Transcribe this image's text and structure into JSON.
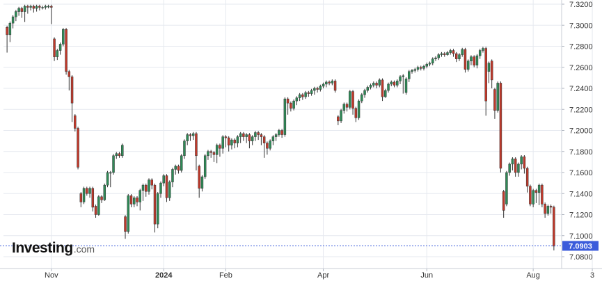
{
  "brand": {
    "name": "Investing",
    "suffix": ".com"
  },
  "colors": {
    "up": "#2e8b57",
    "down": "#c0392b",
    "last_price_bg": "#3b5bdb",
    "grid": "#e6e9ef",
    "axis_text": "#333333"
  },
  "chart_data": {
    "type": "candlestick",
    "title": "",
    "xlabel": "",
    "ylabel": "",
    "ylim": [
      7.07,
      7.325
    ],
    "y_ticks": [
      "7.3200",
      "7.3000",
      "7.2800",
      "7.2600",
      "7.2400",
      "7.2200",
      "7.2000",
      "7.1800",
      "7.1600",
      "7.1400",
      "7.1200",
      "7.1000",
      "7.0800"
    ],
    "x_ticks": [
      {
        "label": "Nov",
        "index": 15
      },
      {
        "label": "2024",
        "index": 53
      },
      {
        "label": "Feb",
        "index": 74
      },
      {
        "label": "Apr",
        "index": 107
      },
      {
        "label": "Jun",
        "index": 142
      },
      {
        "label": "Aug",
        "index": 178
      },
      {
        "label": "3",
        "index": 198
      }
    ],
    "last_price": "7.0903",
    "grid": true,
    "candles": [
      [
        7.298,
        7.291,
        7.274
      ],
      [
        7.291,
        7.302,
        7.284
      ],
      [
        7.302,
        7.308,
        7.297
      ],
      [
        7.308,
        7.313,
        7.304
      ],
      [
        7.313,
        7.316,
        7.309
      ],
      [
        7.316,
        7.313,
        7.307
      ],
      [
        7.313,
        7.318,
        7.303
      ],
      [
        7.318,
        7.317,
        7.311
      ],
      [
        7.317,
        7.318,
        7.314
      ],
      [
        7.318,
        7.316,
        7.312
      ],
      [
        7.316,
        7.318,
        7.313
      ],
      [
        7.318,
        7.317,
        7.314
      ],
      [
        7.317,
        7.317,
        7.315
      ],
      [
        7.317,
        7.318,
        7.315
      ],
      [
        7.318,
        7.318,
        7.316
      ],
      [
        7.318,
        7.317,
        7.301
      ],
      [
        7.287,
        7.27,
        7.266
      ],
      [
        7.27,
        7.276,
        7.267
      ],
      [
        7.276,
        7.282,
        7.272
      ],
      [
        7.282,
        7.296,
        7.28
      ],
      [
        7.296,
        7.256,
        7.253
      ],
      [
        7.256,
        7.251,
        7.238
      ],
      [
        7.251,
        7.226,
        7.208
      ],
      [
        7.214,
        7.202,
        7.199
      ],
      [
        7.202,
        7.165,
        7.163
      ],
      [
        7.14,
        7.132,
        7.127
      ],
      [
        7.132,
        7.145,
        7.13
      ],
      [
        7.145,
        7.14,
        7.138
      ],
      [
        7.14,
        7.145,
        7.136
      ],
      [
        7.145,
        7.127,
        7.123
      ],
      [
        7.128,
        7.12,
        7.117
      ],
      [
        7.12,
        7.137,
        7.119
      ],
      [
        7.137,
        7.134,
        7.131
      ],
      [
        7.134,
        7.148,
        7.133
      ],
      [
        7.148,
        7.16,
        7.146
      ],
      [
        7.16,
        7.16,
        7.146
      ],
      [
        7.16,
        7.176,
        7.158
      ],
      [
        7.176,
        7.178,
        7.173
      ],
      [
        7.178,
        7.176,
        7.174
      ],
      [
        7.176,
        7.186,
        7.174
      ],
      [
        7.118,
        7.104,
        7.097
      ],
      [
        7.104,
        7.138,
        7.102
      ],
      [
        7.138,
        7.13,
        7.127
      ],
      [
        7.13,
        7.136,
        7.127
      ],
      [
        7.136,
        7.132,
        7.128
      ],
      [
        7.132,
        7.143,
        7.124
      ],
      [
        7.143,
        7.148,
        7.133
      ],
      [
        7.148,
        7.142,
        7.137
      ],
      [
        7.142,
        7.153,
        7.139
      ],
      [
        7.153,
        7.148,
        7.144
      ],
      [
        7.148,
        7.111,
        7.103
      ],
      [
        7.111,
        7.14,
        7.107
      ],
      [
        7.14,
        7.15,
        7.136
      ],
      [
        7.15,
        7.157,
        7.147
      ],
      [
        7.157,
        7.136,
        7.132
      ],
      [
        7.136,
        7.151,
        7.133
      ],
      [
        7.151,
        7.163,
        7.146
      ],
      [
        7.163,
        7.166,
        7.158
      ],
      [
        7.166,
        7.162,
        7.159
      ],
      [
        7.162,
        7.176,
        7.16
      ],
      [
        7.176,
        7.19,
        7.173
      ],
      [
        7.19,
        7.196,
        7.186
      ],
      [
        7.196,
        7.195,
        7.19
      ],
      [
        7.195,
        7.197,
        7.191
      ],
      [
        7.197,
        7.176,
        7.162
      ],
      [
        7.166,
        7.145,
        7.136
      ],
      [
        7.145,
        7.156,
        7.142
      ],
      [
        7.156,
        7.176,
        7.154
      ],
      [
        7.176,
        7.18,
        7.172
      ],
      [
        7.18,
        7.179,
        7.174
      ],
      [
        7.179,
        7.177,
        7.17
      ],
      [
        7.177,
        7.186,
        7.169
      ],
      [
        7.186,
        7.183,
        7.175
      ],
      [
        7.183,
        7.194,
        7.178
      ],
      [
        7.194,
        7.193,
        7.184
      ],
      [
        7.193,
        7.186,
        7.18
      ],
      [
        7.186,
        7.191,
        7.182
      ],
      [
        7.191,
        7.188,
        7.183
      ],
      [
        7.188,
        7.194,
        7.184
      ],
      [
        7.194,
        7.197,
        7.188
      ],
      [
        7.197,
        7.194,
        7.19
      ],
      [
        7.194,
        7.196,
        7.188
      ],
      [
        7.196,
        7.19,
        7.183
      ],
      [
        7.19,
        7.194,
        7.186
      ],
      [
        7.194,
        7.198,
        7.19
      ],
      [
        7.198,
        7.196,
        7.191
      ],
      [
        7.196,
        7.194,
        7.186
      ],
      [
        7.194,
        7.188,
        7.174
      ],
      [
        7.188,
        7.183,
        7.177
      ],
      [
        7.183,
        7.19,
        7.181
      ],
      [
        7.19,
        7.194,
        7.186
      ],
      [
        7.194,
        7.196,
        7.19
      ],
      [
        7.196,
        7.2,
        7.194
      ],
      [
        7.2,
        7.196,
        7.193
      ],
      [
        7.196,
        7.23,
        7.194
      ],
      [
        7.23,
        7.226,
        7.215
      ],
      [
        7.226,
        7.221,
        7.218
      ],
      [
        7.221,
        7.228,
        7.219
      ],
      [
        7.228,
        7.231,
        7.224
      ],
      [
        7.231,
        7.234,
        7.228
      ],
      [
        7.234,
        7.232,
        7.229
      ],
      [
        7.232,
        7.236,
        7.23
      ],
      [
        7.236,
        7.235,
        7.232
      ],
      [
        7.235,
        7.238,
        7.233
      ],
      [
        7.238,
        7.24,
        7.234
      ],
      [
        7.24,
        7.239,
        7.236
      ],
      [
        7.239,
        7.242,
        7.237
      ],
      [
        7.242,
        7.244,
        7.24
      ],
      [
        7.244,
        7.246,
        7.241
      ],
      [
        7.246,
        7.245,
        7.243
      ],
      [
        7.245,
        7.247,
        7.243
      ],
      [
        7.247,
        7.238,
        7.236
      ],
      [
        7.213,
        7.209,
        7.205
      ],
      [
        7.209,
        7.219,
        7.207
      ],
      [
        7.219,
        7.225,
        7.216
      ],
      [
        7.225,
        7.222,
        7.218
      ],
      [
        7.222,
        7.237,
        7.22
      ],
      [
        7.237,
        7.221,
        7.215
      ],
      [
        7.221,
        7.212,
        7.208
      ],
      [
        7.212,
        7.228,
        7.21
      ],
      [
        7.228,
        7.234,
        7.226
      ],
      [
        7.234,
        7.238,
        7.231
      ],
      [
        7.238,
        7.241,
        7.236
      ],
      [
        7.241,
        7.243,
        7.239
      ],
      [
        7.243,
        7.245,
        7.241
      ],
      [
        7.245,
        7.243,
        7.24
      ],
      [
        7.243,
        7.248,
        7.241
      ],
      [
        7.248,
        7.232,
        7.228
      ],
      [
        7.232,
        7.238,
        7.231
      ],
      [
        7.238,
        7.244,
        7.236
      ],
      [
        7.244,
        7.246,
        7.242
      ],
      [
        7.246,
        7.243,
        7.241
      ],
      [
        7.243,
        7.247,
        7.241
      ],
      [
        7.247,
        7.251,
        7.244
      ],
      [
        7.251,
        7.252,
        7.235
      ],
      [
        7.236,
        7.249,
        7.234
      ],
      [
        7.249,
        7.256,
        7.246
      ],
      [
        7.256,
        7.257,
        7.254
      ],
      [
        7.257,
        7.258,
        7.255
      ],
      [
        7.258,
        7.26,
        7.256
      ],
      [
        7.26,
        7.259,
        7.257
      ],
      [
        7.259,
        7.261,
        7.257
      ],
      [
        7.261,
        7.263,
        7.259
      ],
      [
        7.263,
        7.264,
        7.261
      ],
      [
        7.264,
        7.268,
        7.262
      ],
      [
        7.268,
        7.269,
        7.266
      ],
      [
        7.269,
        7.272,
        7.267
      ],
      [
        7.272,
        7.273,
        7.27
      ],
      [
        7.273,
        7.272,
        7.27
      ],
      [
        7.272,
        7.274,
        7.271
      ],
      [
        7.274,
        7.276,
        7.272
      ],
      [
        7.276,
        7.273,
        7.27
      ],
      [
        7.273,
        7.268,
        7.265
      ],
      [
        7.268,
        7.272,
        7.266
      ],
      [
        7.272,
        7.277,
        7.27
      ],
      [
        7.277,
        7.258,
        7.255
      ],
      [
        7.258,
        7.266,
        7.256
      ],
      [
        7.266,
        7.27,
        7.262
      ],
      [
        7.27,
        7.262,
        7.26
      ],
      [
        7.262,
        7.271,
        7.259
      ],
      [
        7.271,
        7.276,
        7.268
      ],
      [
        7.276,
        7.278,
        7.274
      ],
      [
        7.278,
        7.228,
        7.214
      ],
      [
        7.256,
        7.264,
        7.245
      ],
      [
        7.266,
        7.248,
        7.24
      ],
      [
        7.239,
        7.219,
        7.211
      ],
      [
        7.219,
        7.245,
        7.217
      ],
      [
        7.245,
        7.164,
        7.16
      ],
      [
        7.142,
        7.124,
        7.117
      ],
      [
        7.13,
        7.16,
        7.128
      ],
      [
        7.16,
        7.168,
        7.157
      ],
      [
        7.168,
        7.173,
        7.162
      ],
      [
        7.173,
        7.16,
        7.156
      ],
      [
        7.16,
        7.168,
        7.156
      ],
      [
        7.168,
        7.175,
        7.163
      ],
      [
        7.175,
        7.164,
        7.159
      ],
      [
        7.164,
        7.147,
        7.141
      ],
      [
        7.147,
        7.13,
        7.128
      ],
      [
        7.13,
        7.143,
        7.127
      ],
      [
        7.143,
        7.141,
        7.131
      ],
      [
        7.141,
        7.148,
        7.129
      ],
      [
        7.148,
        7.13,
        7.127
      ],
      [
        7.13,
        7.121,
        7.117
      ],
      [
        7.121,
        7.128,
        7.119
      ],
      [
        7.128,
        7.127,
        7.121
      ],
      [
        7.127,
        7.09,
        7.086
      ]
    ]
  }
}
